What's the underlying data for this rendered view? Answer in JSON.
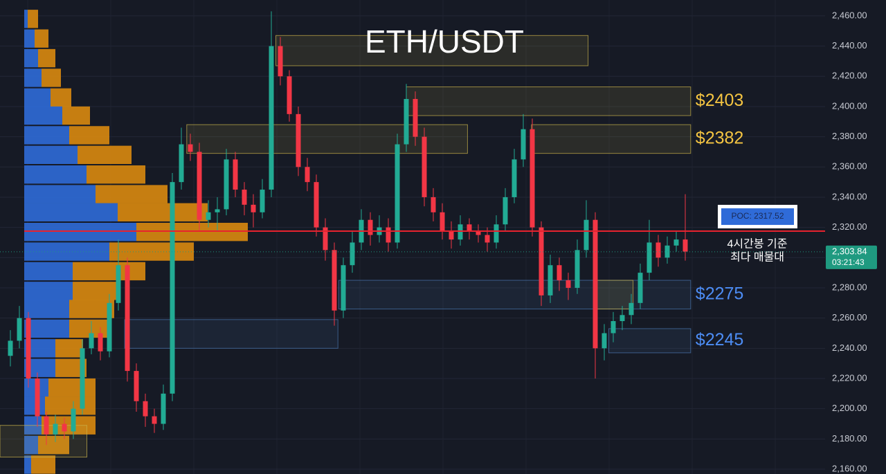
{
  "chart_data": {
    "type": "candlestick",
    "title": "ETH/USDT",
    "open": [
      2235,
      2245,
      2260,
      2220,
      2195,
      2183,
      2190,
      2185,
      2200,
      2240,
      2250,
      2238,
      2270,
      2295,
      2225,
      2205,
      2195,
      2190,
      2210,
      2350,
      2375,
      2370,
      2325,
      2330,
      2332,
      2365,
      2345,
      2335,
      2330,
      2345,
      2440,
      2420,
      2395,
      2360,
      2350,
      2320,
      2305,
      2265,
      2295,
      2310,
      2325,
      2315,
      2320,
      2310,
      2375,
      2405,
      2380,
      2340,
      2330,
      2318,
      2312,
      2322,
      2318,
      2315,
      2310,
      2322,
      2340,
      2365,
      2385,
      2320,
      2275,
      2295,
      2285,
      2280,
      2305,
      2325,
      2240,
      2250,
      2258,
      2262,
      2270,
      2290,
      2310,
      2300,
      2308,
      2312
    ],
    "high": [
      2252,
      2268,
      2264,
      2224,
      2198,
      2196,
      2194,
      2205,
      2246,
      2258,
      2254,
      2276,
      2312,
      2300,
      2230,
      2210,
      2200,
      2216,
      2356,
      2386,
      2382,
      2376,
      2338,
      2340,
      2372,
      2370,
      2350,
      2342,
      2352,
      2463,
      2446,
      2424,
      2400,
      2366,
      2355,
      2326,
      2310,
      2300,
      2318,
      2332,
      2330,
      2328,
      2326,
      2382,
      2415,
      2410,
      2386,
      2346,
      2336,
      2324,
      2328,
      2326,
      2322,
      2320,
      2328,
      2346,
      2372,
      2395,
      2392,
      2324,
      2302,
      2300,
      2290,
      2312,
      2338,
      2330,
      2256,
      2264,
      2268,
      2276,
      2296,
      2325,
      2315,
      2314,
      2318,
      2342
    ],
    "low": [
      2228,
      2240,
      2214,
      2188,
      2176,
      2178,
      2180,
      2180,
      2196,
      2236,
      2232,
      2234,
      2265,
      2218,
      2198,
      2188,
      2184,
      2186,
      2205,
      2345,
      2364,
      2318,
      2320,
      2318,
      2328,
      2340,
      2328,
      2320,
      2326,
      2340,
      2414,
      2390,
      2354,
      2344,
      2314,
      2298,
      2255,
      2260,
      2290,
      2305,
      2308,
      2310,
      2304,
      2306,
      2370,
      2374,
      2334,
      2324,
      2312,
      2306,
      2308,
      2312,
      2310,
      2304,
      2306,
      2318,
      2336,
      2360,
      2314,
      2268,
      2270,
      2278,
      2272,
      2276,
      2300,
      2220,
      2232,
      2244,
      2252,
      2256,
      2266,
      2285,
      2294,
      2296,
      2304,
      2298
    ],
    "close": [
      2245,
      2260,
      2220,
      2195,
      2183,
      2190,
      2185,
      2200,
      2240,
      2250,
      2238,
      2270,
      2295,
      2225,
      2205,
      2195,
      2190,
      2210,
      2350,
      2375,
      2370,
      2325,
      2330,
      2332,
      2365,
      2345,
      2335,
      2330,
      2345,
      2440,
      2420,
      2395,
      2360,
      2350,
      2320,
      2305,
      2265,
      2295,
      2310,
      2325,
      2315,
      2320,
      2310,
      2375,
      2405,
      2380,
      2340,
      2330,
      2318,
      2312,
      2322,
      2318,
      2315,
      2310,
      2322,
      2340,
      2365,
      2385,
      2320,
      2275,
      2295,
      2285,
      2280,
      2305,
      2325,
      2240,
      2250,
      2258,
      2262,
      2270,
      2290,
      2310,
      2300,
      2308,
      2312,
      2304
    ],
    "colors": {
      "up": "#22ab94",
      "down": "#f23645"
    },
    "ylim": [
      2156.8,
      2470.5
    ],
    "yticks": [
      {
        "value": 2160,
        "label": "2,160.00"
      },
      {
        "value": 2180,
        "label": "2,180.00"
      },
      {
        "value": 2200,
        "label": "2,200.00"
      },
      {
        "value": 2220,
        "label": "2,220.00"
      },
      {
        "value": 2240,
        "label": "2,240.00"
      },
      {
        "value": 2260,
        "label": "2,260.00"
      },
      {
        "value": 2280,
        "label": "2,280.00"
      },
      {
        "value": 2300,
        "label": "2,300.00"
      },
      {
        "value": 2320,
        "label": "2,320.00"
      },
      {
        "value": 2340,
        "label": "2,340.00"
      },
      {
        "value": 2360,
        "label": "2,360.00"
      },
      {
        "value": 2380,
        "label": "2,380.00"
      },
      {
        "value": 2400,
        "label": "2,400.00"
      },
      {
        "value": 2420,
        "label": "2,420.00"
      },
      {
        "value": 2440,
        "label": "2,440.00"
      },
      {
        "value": 2460,
        "label": "2,460.00"
      }
    ],
    "grid": true,
    "volume_profile": {
      "prices": [
        2458,
        2445,
        2432,
        2419,
        2406,
        2394,
        2381,
        2368,
        2355,
        2342,
        2330,
        2317,
        2304,
        2291,
        2278,
        2266,
        2253,
        2240,
        2227,
        2214,
        2202,
        2189,
        2176,
        2163
      ],
      "buy": [
        5,
        15,
        20,
        25,
        38,
        55,
        65,
        77,
        90,
        103,
        135,
        162,
        123,
        70,
        70,
        65,
        65,
        45,
        45,
        35,
        30,
        25,
        20,
        10
      ],
      "sell": [
        15,
        20,
        25,
        28,
        30,
        40,
        58,
        78,
        85,
        104,
        130,
        161,
        122,
        105,
        67,
        65,
        60,
        40,
        45,
        68,
        73,
        78,
        45,
        35
      ],
      "buy_color": "#2f6bd8",
      "sell_color": "#d98a10"
    },
    "zones": [
      {
        "low": 2427,
        "high": 2447,
        "start": 29.5,
        "end": 64.2,
        "color": "#c9b24a"
      },
      {
        "low": 2394,
        "high": 2413,
        "start": 44.0,
        "end": 75.6,
        "color": "#c9b24a",
        "label": "$2403",
        "label_color": "#f5c542"
      },
      {
        "low": 2369,
        "high": 2388,
        "start": 19.6,
        "end": 50.8,
        "color": "#c9b24a"
      },
      {
        "low": 2369,
        "high": 2388,
        "start": 57.9,
        "end": 75.6,
        "color": "#c9b24a",
        "label": "$2382",
        "label_color": "#f5c542"
      },
      {
        "low": 2266,
        "high": 2285,
        "start": 36.5,
        "end": 75.6,
        "color": "#4a78b0",
        "label": "$2275",
        "label_color": "#4d8df5"
      },
      {
        "low": 2237,
        "high": 2253,
        "start": 66.5,
        "end": 75.6,
        "color": "#4a78b0",
        "label": "$2245",
        "label_color": "#4d8df5"
      },
      {
        "low": 2240,
        "high": 2259,
        "start": 12.7,
        "end": 36.4,
        "color": "#4a78b0"
      },
      {
        "low": 2168,
        "high": 2189,
        "start": -1.2,
        "end": 8.5,
        "color": "#c9b24a"
      },
      {
        "low": 2266,
        "high": 2285,
        "start": 65.2,
        "end": 69.2,
        "color": "#c9b24a"
      }
    ],
    "poc": {
      "value": 2317.52,
      "label": "POC: 2317.52",
      "note": [
        "4시간봉 기준",
        "최다 매물대"
      ],
      "color": "#e8222e"
    },
    "last_price": {
      "value": 2303.84,
      "label": "2,303.84",
      "countdown": "03:21:43",
      "color": "#1f9a80"
    }
  }
}
